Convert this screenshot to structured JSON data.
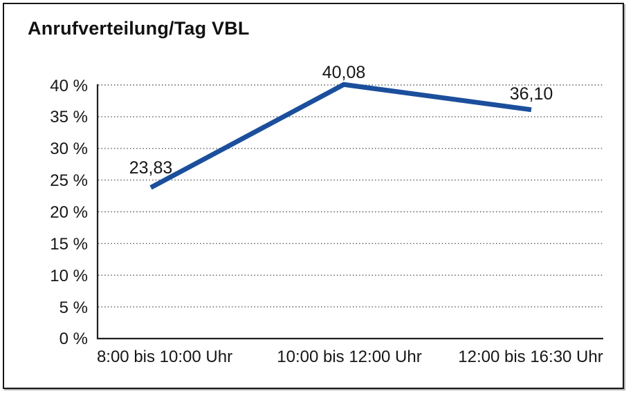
{
  "window": {
    "title": "Anrufverteilung/Tag VBL"
  },
  "chart_data": {
    "type": "line",
    "title": "Anrufverteilung/Tag VBL",
    "categories": [
      "8:00 bis 10:00 Uhr",
      "10:00 bis 12:00 Uhr",
      "12:00 bis 16:30 Uhr"
    ],
    "values": [
      23.83,
      40.08,
      36.1
    ],
    "value_labels": [
      "23,83",
      "40,08",
      "36,10"
    ],
    "xlabel": "",
    "ylabel": "",
    "ylim": [
      0,
      40
    ],
    "y_tick_step": 5,
    "y_tick_labels": [
      "0 %",
      "5 %",
      "10 %",
      "15 %",
      "20 %",
      "25 %",
      "30 %",
      "35 %",
      "40 %"
    ],
    "grid": "horizontal-dotted",
    "legend": "none",
    "line_color": "#1b4f9c",
    "line_width": 7
  }
}
